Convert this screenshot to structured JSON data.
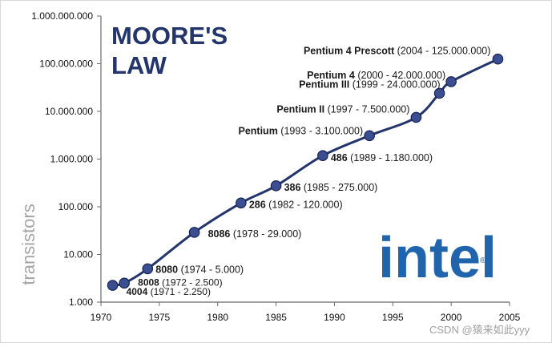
{
  "chart_data": {
    "type": "line",
    "title_lines": [
      "MOORE'S",
      "LAW"
    ],
    "xlabel": "",
    "ylabel": "transistors",
    "x": [
      1971,
      1972,
      1974,
      1978,
      1982,
      1985,
      1989,
      1993,
      1997,
      1999,
      2000,
      2004
    ],
    "y": [
      2250,
      2500,
      5000,
      29000,
      120000,
      275000,
      1180000,
      3100000,
      7500000,
      24000000,
      42000000,
      125000000
    ],
    "x_ticks": [
      "1970",
      "1975",
      "1980",
      "1985",
      "1990",
      "1995",
      "2000",
      "2005"
    ],
    "y_ticks": [
      "1.000",
      "10.000",
      "100.000",
      "1.000.000",
      "10.000.000",
      "100.000.000",
      "1.000.000.000"
    ],
    "point_labels": [
      {
        "name": "4004",
        "detail": " (1971 - 2.250)"
      },
      {
        "name": "8008",
        "detail": " (1972 - 2.500)"
      },
      {
        "name": "8080",
        "detail": " (1974 - 5.000)"
      },
      {
        "name": "8086",
        "detail": " (1978 - 29.000)"
      },
      {
        "name": "286",
        "detail": " (1982 - 120.000)"
      },
      {
        "name": "386",
        "detail": " (1985 - 275.000)"
      },
      {
        "name": "486",
        "detail": " (1989 - 1.180.000)"
      },
      {
        "name": "Pentium",
        "detail": " (1993 - 3.100.000)"
      },
      {
        "name": "Pentium II",
        "detail": " (1997 - 7.500.000)"
      },
      {
        "name": "Pentium III",
        "detail": " (1999 - 24.000.000)"
      },
      {
        "name": "Pentium 4",
        "detail": " (2000 - 42.000.000)"
      },
      {
        "name": "Pentium 4 Prescott",
        "detail": " (2004 - 125.000.000)"
      }
    ],
    "xlim": [
      1970,
      2005
    ],
    "ylim": [
      1000,
      1000000000
    ],
    "y_scale": "log",
    "grid": false,
    "legend": "none"
  },
  "branding": {
    "logo_text": "intel",
    "registered_mark": "®"
  },
  "watermark": "CSDN @猿来如此yyy",
  "colors": {
    "line": "#23356b",
    "marker_fill": "#3b4e91",
    "marker_stroke": "#162451",
    "title": "#23356b",
    "axis": "#6a6a6a",
    "frame": "#d7d7d7",
    "intel_blue": "#1f64ac",
    "ylabel": "#a4a4a4"
  }
}
